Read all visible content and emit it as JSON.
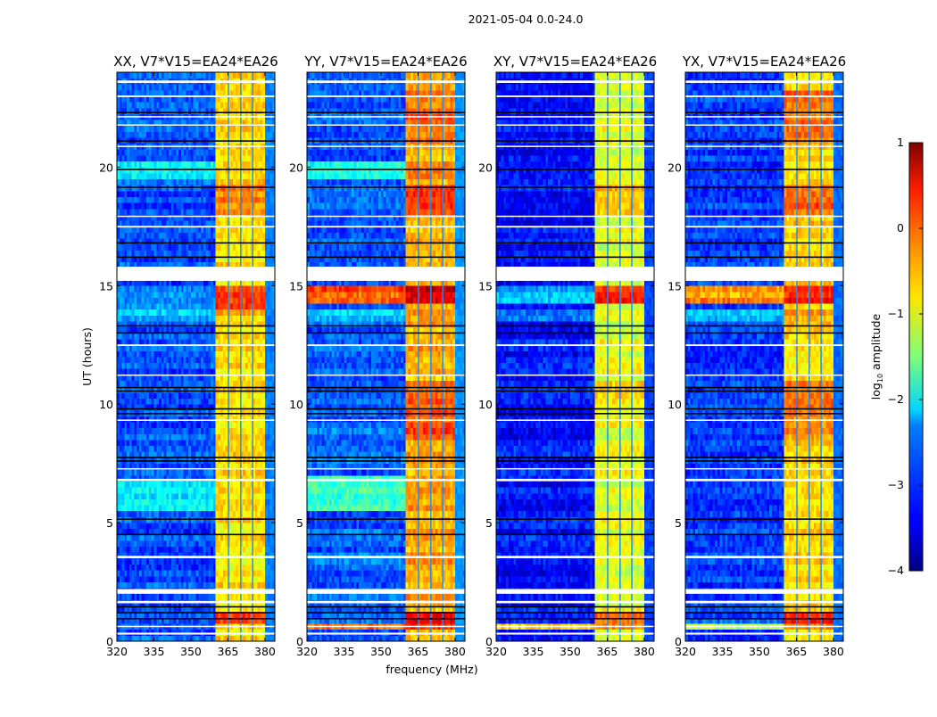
{
  "chart_data": {
    "type": "heatmap",
    "title": "2021-05-04 0.0-24.0",
    "xlabel": "frequency (MHz)",
    "ylabel": "UT (hours)",
    "xlim": [
      320,
      384
    ],
    "ylim": [
      0,
      24
    ],
    "xticks": [
      320,
      335,
      350,
      365,
      380
    ],
    "yticks": [
      0,
      5,
      10,
      15,
      20
    ],
    "colorbar": {
      "label_main": "log",
      "label_sub": "10",
      "label_rest": " amplitude",
      "range": [
        -4,
        1
      ],
      "ticks": [
        1,
        0,
        -1,
        -2,
        -3,
        -4
      ],
      "tick_labels": [
        "1",
        "0",
        "−1",
        "−2",
        "−3",
        "−4"
      ],
      "colormap": "jet"
    },
    "band_mhz": [
      360.5,
      380
    ],
    "channel_gaps_mhz": [
      365.2,
      370.2,
      375.0
    ],
    "flagged_white_hours": [
      [
        15.2,
        15.8
      ],
      [
        23.55,
        23.65
      ],
      [
        22.95,
        23.02
      ],
      [
        22.1,
        22.15
      ],
      [
        21.75,
        21.8
      ],
      [
        20.85,
        20.9
      ],
      [
        17.45,
        17.52
      ],
      [
        17.9,
        17.95
      ],
      [
        12.45,
        12.52
      ],
      [
        11.2,
        11.25
      ],
      [
        9.3,
        9.35
      ],
      [
        7.25,
        7.3
      ],
      [
        6.75,
        6.85
      ],
      [
        3.5,
        3.6
      ],
      [
        2.0,
        2.2
      ],
      [
        1.6,
        1.7
      ],
      [
        0.6,
        0.65
      ],
      [
        0.28,
        0.36
      ]
    ],
    "flagged_black_hours": [
      22.3,
      21.1,
      19.9,
      19.15,
      16.8,
      16.2,
      13.3,
      13.0,
      10.7,
      10.55,
      9.8,
      9.6,
      7.75,
      7.6,
      5.15,
      4.5,
      1.45,
      1.2,
      0.95
    ],
    "panels": [
      {
        "title": "XX, V7*V15=EA24*EA26",
        "background_level": -3.0,
        "band_level": -0.75,
        "events": [
          {
            "from": 19.5,
            "to": 20.3,
            "background": 0.8,
            "band": 0.0
          },
          {
            "from": 18.0,
            "to": 19.3,
            "background": 0.0,
            "band": 0.5
          },
          {
            "from": 14.0,
            "to": 15.0,
            "background": 0.4,
            "band": 0.9
          },
          {
            "from": 13.4,
            "to": 13.9,
            "background": 0.6,
            "band": 0.2
          },
          {
            "from": 5.5,
            "to": 6.8,
            "background": 0.8,
            "band": 0.0
          },
          {
            "from": 0.8,
            "to": 1.35,
            "background": 0.2,
            "band": 1.0
          },
          {
            "from": 0.45,
            "to": 0.6,
            "background": 1.6,
            "band": 0.6
          }
        ]
      },
      {
        "title": "YY, V7*V15=EA24*EA26",
        "background_level": -2.9,
        "band_level": -0.45,
        "events": [
          {
            "from": 19.6,
            "to": 20.2,
            "background": 1.0,
            "band": 0.3
          },
          {
            "from": 18.0,
            "to": 19.3,
            "background": 0.0,
            "band": 0.5
          },
          {
            "from": 21.0,
            "to": 23.2,
            "background": 0.0,
            "band": 0.3
          },
          {
            "from": 14.2,
            "to": 14.9,
            "background": 2.8,
            "band": 1.0
          },
          {
            "from": 13.4,
            "to": 13.9,
            "background": 0.6,
            "band": 0.2
          },
          {
            "from": 8.5,
            "to": 11.0,
            "background": 0.0,
            "band": 0.4
          },
          {
            "from": 5.5,
            "to": 7.0,
            "background": 1.0,
            "band": 0.0
          },
          {
            "from": 0.8,
            "to": 1.35,
            "background": 0.2,
            "band": 1.0
          },
          {
            "from": 0.45,
            "to": 0.65,
            "background": 2.8,
            "band": 0.6
          }
        ]
      },
      {
        "title": "XY, V7*V15=EA24*EA26",
        "background_level": -3.3,
        "band_level": -1.0,
        "events": [
          {
            "from": 18.0,
            "to": 19.3,
            "background": 0.0,
            "band": 0.5
          },
          {
            "from": 14.2,
            "to": 14.9,
            "background": 0.8,
            "band": 1.2
          },
          {
            "from": 13.4,
            "to": 13.9,
            "background": 0.6,
            "band": 0.2
          },
          {
            "from": 9.0,
            "to": 11.0,
            "background": 0.0,
            "band": 0.2
          },
          {
            "from": 0.8,
            "to": 1.35,
            "background": 0.2,
            "band": 1.0
          },
          {
            "from": 0.45,
            "to": 0.65,
            "background": 2.5,
            "band": 0.6
          }
        ]
      },
      {
        "title": "YX, V7*V15=EA24*EA26",
        "background_level": -3.1,
        "band_level": -0.7,
        "events": [
          {
            "from": 21.0,
            "to": 23.2,
            "background": 0.0,
            "band": 0.5
          },
          {
            "from": 18.0,
            "to": 19.3,
            "background": 0.0,
            "band": 0.6
          },
          {
            "from": 14.2,
            "to": 14.9,
            "background": 2.8,
            "band": 1.0
          },
          {
            "from": 13.4,
            "to": 13.9,
            "background": 0.6,
            "band": 0.2
          },
          {
            "from": 8.5,
            "to": 11.0,
            "background": 0.0,
            "band": 0.4
          },
          {
            "from": 0.8,
            "to": 1.35,
            "background": 0.2,
            "band": 1.0
          },
          {
            "from": 0.45,
            "to": 0.65,
            "background": 2.0,
            "band": 0.6
          }
        ]
      }
    ]
  }
}
